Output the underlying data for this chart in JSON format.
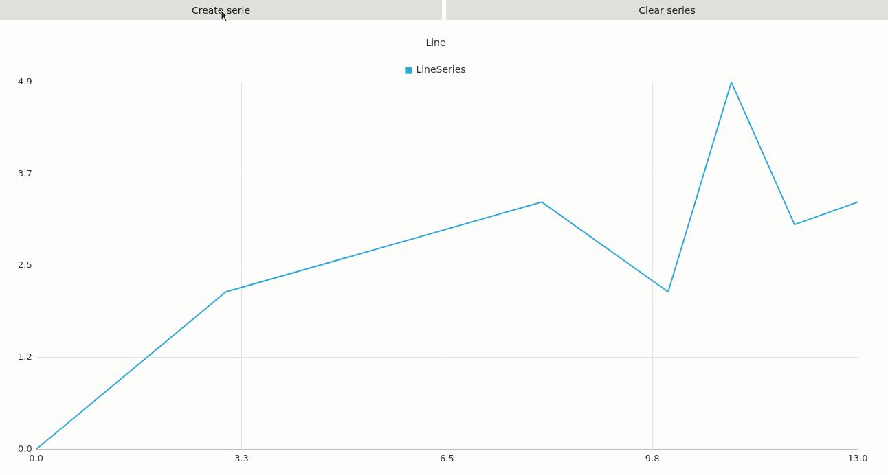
{
  "chart_data": {
    "type": "line",
    "title": "Line",
    "annotations": [
      "Create serie",
      "Clear series"
    ],
    "x": [
      0,
      3,
      8,
      10,
      11,
      12,
      13
    ],
    "series": [
      {
        "name": "LineSeries",
        "color": "#2fa8d8",
        "values": [
          0,
          2.1,
          3.3,
          2.1,
          4.9,
          3.0,
          3.3
        ]
      }
    ],
    "xlim": [
      0,
      13
    ],
    "xticks": [
      {
        "value": 0,
        "label": "0.0"
      },
      {
        "value": 3.25,
        "label": "3.3"
      },
      {
        "value": 6.5,
        "label": "6.5"
      },
      {
        "value": 9.75,
        "label": "9.8"
      },
      {
        "value": 13,
        "label": "13.0"
      }
    ],
    "ylim": [
      0,
      4.9
    ],
    "yticks": [
      {
        "value": 0,
        "label": "0.0"
      },
      {
        "value": 1.225,
        "label": "1.2"
      },
      {
        "value": 2.45,
        "label": "2.5"
      },
      {
        "value": 3.675,
        "label": "3.7"
      },
      {
        "value": 4.9,
        "label": "4.9"
      }
    ],
    "grid": true,
    "legend": "top",
    "marker": "none",
    "line_style": "solid"
  }
}
